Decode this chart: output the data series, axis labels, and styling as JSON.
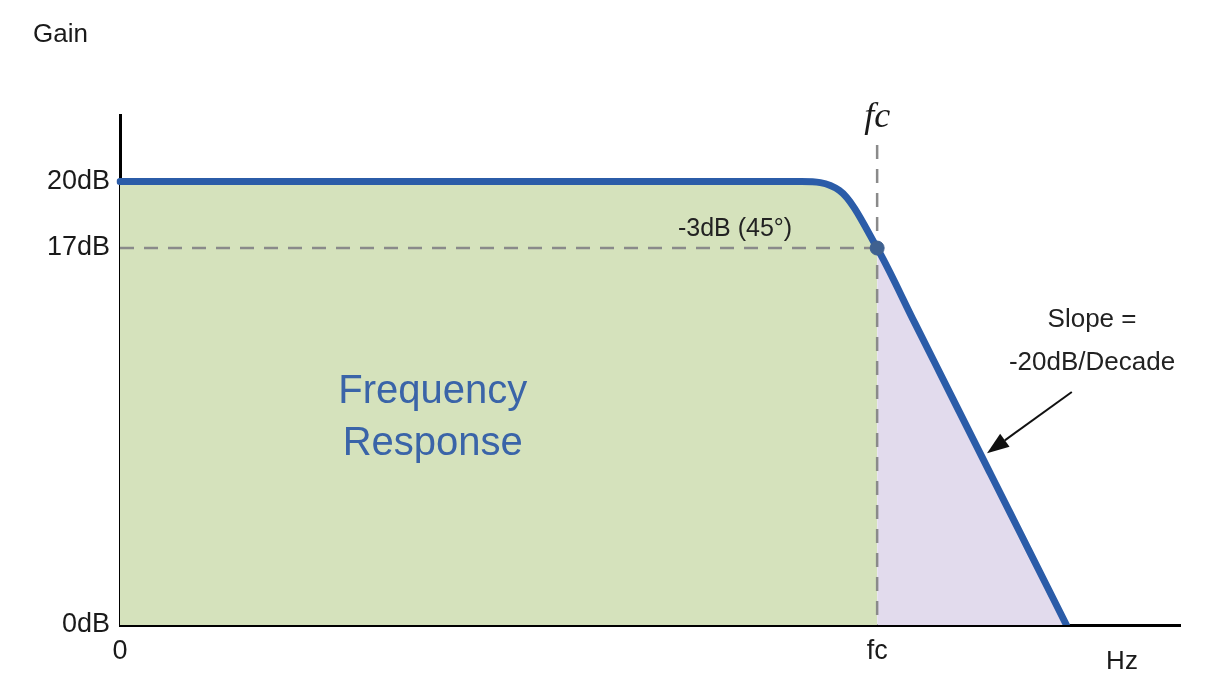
{
  "chart_data": {
    "type": "line",
    "ylabel": "Gain",
    "xlabel": "Hz",
    "categories": [
      "0",
      null,
      null,
      null,
      null,
      null,
      null,
      null,
      null,
      null,
      null,
      null,
      null,
      null,
      null,
      null,
      null,
      null,
      null,
      null,
      "fc",
      null,
      null,
      null,
      null,
      null,
      null,
      null,
      null
    ],
    "ylim": [
      0,
      23
    ],
    "yticks": [
      {
        "value": 0,
        "label": "0dB"
      },
      {
        "value": 17,
        "label": "17dB"
      },
      {
        "value": 20,
        "label": "20dB"
      }
    ],
    "series": [
      {
        "type": "area",
        "color": "#d5e2bc",
        "values": [
          20,
          20,
          20,
          20,
          20,
          20,
          20,
          20,
          20,
          20,
          20,
          20,
          20,
          20,
          20,
          20,
          20,
          20,
          20,
          19.6,
          17,
          null,
          null,
          null,
          null,
          null,
          null,
          null,
          null
        ]
      },
      {
        "type": "area",
        "color": "#e2dbed",
        "values": [
          null,
          null,
          null,
          null,
          null,
          null,
          null,
          null,
          null,
          null,
          null,
          null,
          null,
          null,
          null,
          null,
          null,
          null,
          null,
          null,
          17,
          13.6,
          10.2,
          6.8,
          3.4,
          0,
          null,
          null,
          null
        ]
      },
      {
        "color": "#2b5ca8",
        "values": [
          20,
          20,
          20,
          20,
          20,
          20,
          20,
          20,
          20,
          20,
          20,
          20,
          20,
          20,
          20,
          20,
          20,
          20,
          20,
          19.6,
          17,
          13.6,
          10.2,
          6.8,
          3.4,
          0,
          null,
          null,
          null
        ]
      },
      {
        "type": "scatter",
        "color": "#3f6190",
        "marker": "circle",
        "values": [
          null,
          null,
          null,
          null,
          null,
          null,
          null,
          null,
          null,
          null,
          null,
          null,
          null,
          null,
          null,
          null,
          null,
          null,
          null,
          null,
          17,
          null,
          null,
          null,
          null,
          null,
          null,
          null,
          null
        ]
      }
    ],
    "ref_lines": [
      {
        "axis": "x",
        "value": "fc",
        "label": "fc",
        "color": "#8a8a8a",
        "line_style": "dashed"
      },
      {
        "axis": "y",
        "value": 17,
        "label": "-3dB (45°)",
        "color": "#8a8a8a",
        "line_style": "dashed"
      }
    ],
    "annotations": [
      "Frequency Response",
      "Slope = -20dB/Decade"
    ]
  }
}
